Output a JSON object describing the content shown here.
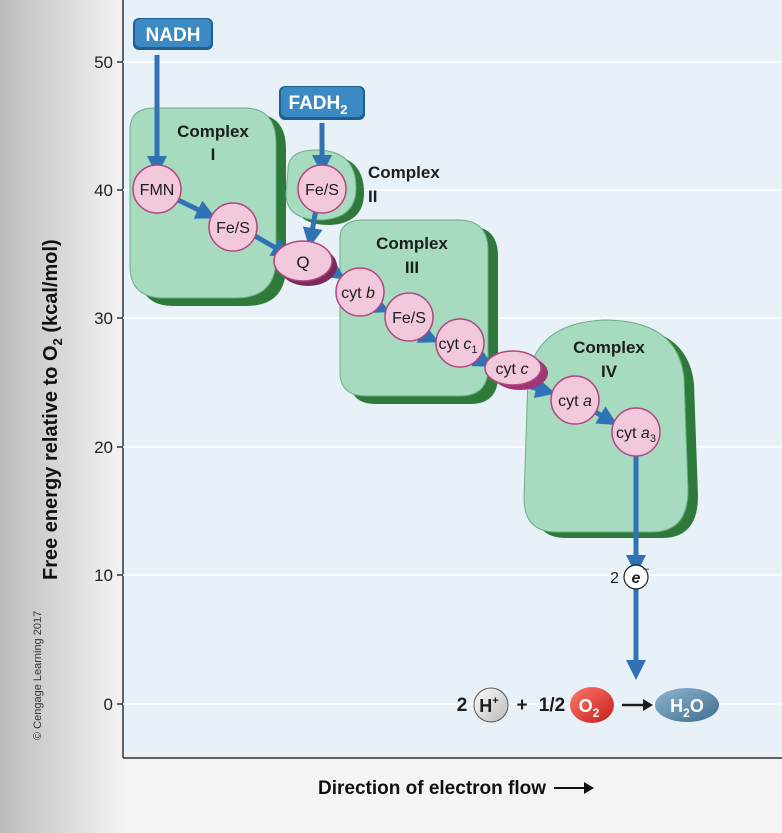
{
  "copyright": "© Cengage Learning 2017",
  "y_axis": {
    "title_prefix": "Free energy relative to O",
    "title_sub": "2",
    "title_suffix": " (kcal/mol)",
    "ticks": [
      "0",
      "10",
      "20",
      "30",
      "40",
      "50"
    ]
  },
  "x_axis": {
    "title": "Direction of electron flow"
  },
  "inputs": {
    "nadh": "NADH",
    "fadh_base": "FADH",
    "fadh_sub": "2"
  },
  "complexes": {
    "c1_line1": "Complex",
    "c1_line2": "I",
    "c2_line1": "Complex",
    "c2_line2": "II",
    "c3_line1": "Complex",
    "c3_line2": "III",
    "c4_line1": "Complex",
    "c4_line2": "IV"
  },
  "carriers": {
    "fmn": "FMN",
    "fes1": "Fe/S",
    "fes2": "Fe/S",
    "q": "Q",
    "cytb_prefix": "cyt ",
    "cytb_italic": "b",
    "fes3": "Fe/S",
    "cytc1_prefix": "cyt ",
    "cytc1_italic": "c",
    "cytc1_sub": "1",
    "cytc_prefix": "cyt ",
    "cytc_italic": "c",
    "cyta_prefix": "cyt ",
    "cyta_italic": "a",
    "cyta3_prefix": "cyt ",
    "cyta3_italic": "a",
    "cyta3_sub": "3"
  },
  "electrons": {
    "count": "2",
    "symbol": "e",
    "charge": "–"
  },
  "reaction": {
    "coef1": "2",
    "h": "H",
    "h_charge": "+",
    "plus": "+",
    "coef2": "1/2",
    "o": "O",
    "o_sub": "2",
    "product_h": "H",
    "product_sub": "2",
    "product_o": "O"
  },
  "colors": {
    "complex_fill": "#a6dbbf",
    "complex_shadow": "#2f7a3a",
    "carrier_fill": "#f1c8dc",
    "carrier_stroke": "#b0467e",
    "arrow_blue": "#2f73b5",
    "label_blue": "#3b8ac4",
    "plot_bg": "#e8f0f8",
    "o2_red": "#d32a2a",
    "h2o_blue": "#5d8fb0"
  }
}
